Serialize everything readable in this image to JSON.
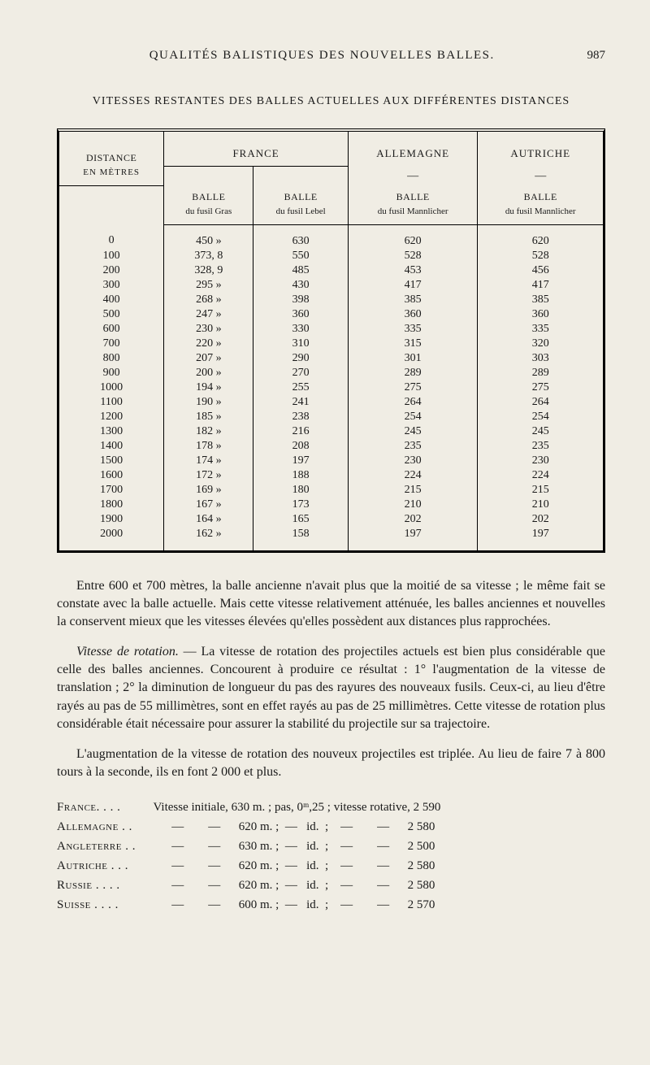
{
  "header": {
    "title": "QUALITÉS BALISTIQUES DES NOUVELLES BALLES.",
    "page_number": "987"
  },
  "subtitle": "VITESSES RESTANTES DES BALLES ACTUELLES AUX DIFFÉRENTES DISTANCES",
  "table": {
    "col_headers": {
      "distance": "DISTANCE",
      "distance_sub": "EN MÈTRES",
      "france": "FRANCE",
      "allemagne": "ALLEMAGNE",
      "autriche": "AUTRICHE",
      "balle": "BALLE",
      "gras": "du fusil Gras",
      "lebel": "du fusil Lebel",
      "mannlicher": "du fusil Mannlicher"
    },
    "rows": [
      [
        "0",
        "450 »",
        "630",
        "620",
        "620"
      ],
      [
        "100",
        "373, 8",
        "550",
        "528",
        "528"
      ],
      [
        "200",
        "328, 9",
        "485",
        "453",
        "456"
      ],
      [
        "300",
        "295 »",
        "430",
        "417",
        "417"
      ],
      [
        "400",
        "268 »",
        "398",
        "385",
        "385"
      ],
      [
        "500",
        "247 »",
        "360",
        "360",
        "360"
      ],
      [
        "600",
        "230 »",
        "330",
        "335",
        "335"
      ],
      [
        "700",
        "220 »",
        "310",
        "315",
        "320"
      ],
      [
        "800",
        "207 »",
        "290",
        "301",
        "303"
      ],
      [
        "900",
        "200 »",
        "270",
        "289",
        "289"
      ],
      [
        "1000",
        "194 »",
        "255",
        "275",
        "275"
      ],
      [
        "1100",
        "190 »",
        "241",
        "264",
        "264"
      ],
      [
        "1200",
        "185 »",
        "238",
        "254",
        "254"
      ],
      [
        "1300",
        "182 »",
        "216",
        "245",
        "245"
      ],
      [
        "1400",
        "178 »",
        "208",
        "235",
        "235"
      ],
      [
        "1500",
        "174 »",
        "197",
        "230",
        "230"
      ],
      [
        "1600",
        "172 »",
        "188",
        "224",
        "224"
      ],
      [
        "1700",
        "169 »",
        "180",
        "215",
        "215"
      ],
      [
        "1800",
        "167 »",
        "173",
        "210",
        "210"
      ],
      [
        "1900",
        "164 »",
        "165",
        "202",
        "202"
      ],
      [
        "2000",
        "162 »",
        "158",
        "197",
        "197"
      ]
    ]
  },
  "paragraphs": {
    "p1": "Entre 600 et 700 mètres, la balle ancienne n'avait plus que la moitié de sa vitesse ; le même fait se constate avec la balle actuelle. Mais cette vitesse relativement atténuée, les balles anciennes et nouvelles la conser­vent mieux que les vitesses élevées qu'elles possèdent aux distances plus rapprochées.",
    "p2_title": "Vitesse de rotation.",
    "p2": " — La vitesse de rotation des projectiles actuels est bien plus considérable que celle des balles anciennes. Concourent à pro­duire ce résultat : 1° l'augmentation de la vitesse de translation ; 2° la diminution de longueur du pas des rayures des nouveaux fusils. Ceux-ci, au lieu d'être rayés au pas de 55 millimètres, sont en effet rayés au pas de 25 millimètres. Cette vitesse de rotation plus considérable était nécessaire pour assurer la stabilité du projectile sur sa trajectoire.",
    "p3": "L'augmentation de la vitesse de rotation des nouveux projectiles est tri­plée. Au lieu de faire 7 à 800 tours à la seconde, ils en font 2 000 et plus."
  },
  "countries": [
    {
      "name": "France. . . .",
      "text": "Vitesse initiale, 630 m. ; pas, 0ᵐ,25 ; vitesse rotative, 2 590"
    },
    {
      "name": "Allemagne . .",
      "text": "      —        —      620 m. ;  —   id.  ;    —        —      2 580"
    },
    {
      "name": "Angleterre . .",
      "text": "      —        —      630 m. ;  —   id.  ;    —        —      2 500"
    },
    {
      "name": "Autriche . . .",
      "text": "      —        —      620 m. ;  —   id.  ;    —        —      2 580"
    },
    {
      "name": "Russie . . . .",
      "text": "      —        —      620 m. ;  —   id.  ;    —        —      2 580"
    },
    {
      "name": "Suisse . . . .",
      "text": "      —        —      600 m. ;  —   id.  ;    —        —      2 570"
    }
  ]
}
